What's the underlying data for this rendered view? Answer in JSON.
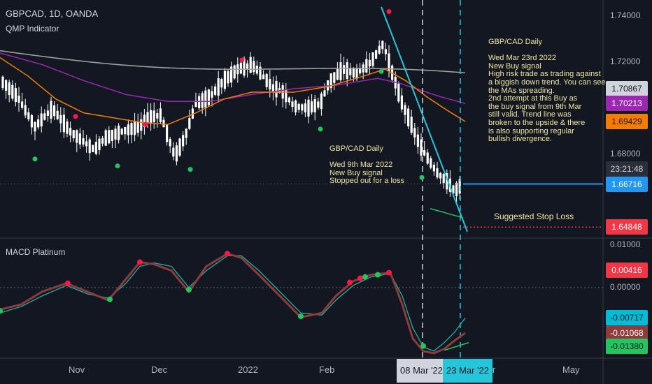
{
  "header": {
    "symbol_line": "GBPCAD, 1D, OANDA",
    "indicator_name": "QMP Indicator",
    "macd_name": "MACD Platinum"
  },
  "annotations": {
    "note_right": "GBP/CAD Daily\n\nWed Mar 23rd 2022\nNew Buy signal\nHigh risk trade as trading against\na biggish down trend. You can see\nthe MAs spreading.\n2nd attempt at this Buy as\nthe buy signal from 9th Mar\nstill valid. Trend line was\nbroken to the upside & there\nis also supporting regular\nbullish divergence.",
    "note_mid": "GBP/CAD Daily\n\nWed 9th Mar 2022\nNew Buy signal\nStopped out for a loss",
    "stop_loss": "Suggested Stop Loss"
  },
  "price_axis": {
    "ticks": [
      "1.74000",
      "1.72000",
      "1.70000",
      "1.68000"
    ],
    "tags": [
      {
        "label": "1.70867",
        "bg": "#d1d4dc",
        "fg": "#131722"
      },
      {
        "label": "1.70213",
        "bg": "#9c27b0",
        "fg": "#ffffff"
      },
      {
        "label": "1.69429",
        "bg": "#f57c00",
        "fg": "#131722"
      },
      {
        "label": "23:21:48",
        "bg": "#2a2e39",
        "fg": "#d1d4dc"
      },
      {
        "label": "1.66716",
        "bg": "#2196f3",
        "fg": "#ffffff"
      },
      {
        "label": "1.64848",
        "bg": "#f23645",
        "fg": "#ffffff"
      }
    ]
  },
  "macd_axis": {
    "ticks": [
      "0.01000",
      "0.00000"
    ],
    "tags": [
      {
        "label": "0.00416",
        "bg": "#f23645",
        "fg": "#ffffff"
      },
      {
        "label": "-0.00717",
        "bg": "#00bcd4",
        "fg": "#131722"
      },
      {
        "label": "-0.01068",
        "bg": "#8d3b3b",
        "fg": "#ffffff"
      },
      {
        "label": "-0.01380",
        "bg": "#22c55e",
        "fg": "#131722"
      }
    ]
  },
  "time_axis": {
    "labels": [
      "Nov",
      "Dec",
      "2022",
      "Feb",
      "Apr",
      "May"
    ],
    "cursor_labels": [
      {
        "label": "08 Mar '22",
        "bg": "#d1d4dc",
        "fg": "#131722"
      },
      {
        "label": "23 Mar '22",
        "bg": "#26c6da",
        "fg": "#131722"
      }
    ]
  },
  "colors": {
    "background": "#131722",
    "up_candle": "#ffffff",
    "down_candle": "#ffffff",
    "ma_gray": "#9e9e9e",
    "ma_purple": "#9c27b0",
    "ma_orange": "#f57c00",
    "trendline": "#26c6da",
    "divergence": "#22c55e",
    "buy_dot": "#22c55e",
    "sell_dot": "#ff1744",
    "macd_line": "#8d3b3b",
    "signal_line": "#26a69a"
  },
  "chart_data": [
    {
      "type": "candlestick",
      "title": "GBPCAD, 1D, OANDA",
      "ylim": [
        1.644,
        1.747
      ],
      "annotated_levels": {
        "current": 1.66716,
        "stop_loss": 1.64848,
        "ma_gray": 1.70867,
        "ma_purple": 1.70213,
        "ma_orange": 1.69429
      },
      "markers": [
        {
          "date": "Mar 9 2022",
          "text": "Buy signal, stopped out for a loss"
        },
        {
          "date": "Mar 23 2022",
          "text": "New Buy signal"
        }
      ]
    },
    {
      "type": "line",
      "title": "MACD Platinum",
      "ylim": [
        -0.0165,
        0.0115
      ],
      "last_values": {
        "macd": -0.01068,
        "signal": -0.00717,
        "divergence_low": -0.0138,
        "upper": 0.00416
      }
    }
  ]
}
